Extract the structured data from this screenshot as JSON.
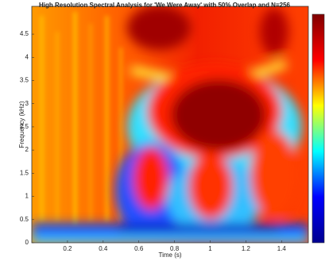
{
  "chart_data": {
    "type": "spectrogram",
    "title": "High Resolution Spectral Analysis for 'We Were Away' with 50% Overlap and N=256",
    "xlabel": "Time (s)",
    "ylabel": "Frequency (kHz)",
    "xlim": [
      0,
      1.55
    ],
    "xticks": [
      0.2,
      0.4,
      0.6,
      0.8,
      1,
      1.2,
      1.4
    ],
    "ylim": [
      0,
      5.1
    ],
    "yticks": [
      0,
      0.5,
      1,
      1.5,
      2,
      2.5,
      3,
      3.5,
      4,
      4.5
    ],
    "colormap": [
      "#00008f",
      "#0000ff",
      "#00ffff",
      "#ffff00",
      "#ff0000",
      "#800000"
    ]
  }
}
